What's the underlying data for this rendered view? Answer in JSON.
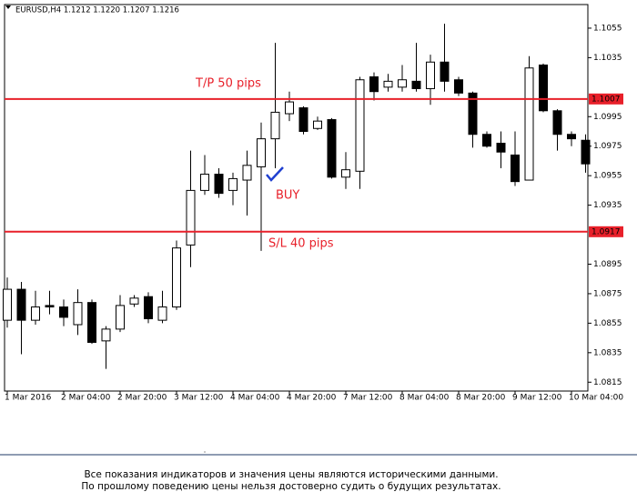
{
  "chart_data": {
    "type": "candlestick",
    "title": "EURUSD,H4  1.1212 1.1220 1.1207 1.1216",
    "categories": [
      "1 Mar 2016",
      null,
      null,
      null,
      "2 Mar 04:00",
      null,
      null,
      null,
      "2 Mar 20:00",
      null,
      null,
      null,
      "3 Mar 12:00",
      null,
      null,
      null,
      "4 Mar 04:00",
      null,
      null,
      null,
      "4 Mar 20:00",
      null,
      null,
      null,
      "7 Mar 12:00",
      null,
      null,
      null,
      "8 Mar 04:00",
      null,
      null,
      null,
      "8 Mar 20:00",
      null,
      null,
      null,
      "9 Mar 12:00",
      null,
      null,
      null,
      "10 Mar 04:00",
      null
    ],
    "open": [
      1.0857,
      1.0878,
      1.0857,
      1.0867,
      1.0866,
      1.0854,
      1.0869,
      1.0843,
      1.0851,
      1.0868,
      1.0873,
      1.0857,
      1.0866,
      1.0908,
      1.0945,
      1.0956,
      1.0945,
      1.0952,
      1.0961,
      1.098,
      1.0997,
      1.1001,
      1.0987,
      1.0993,
      1.0954,
      1.0958,
      1.1022,
      1.1015,
      1.1015,
      1.1019,
      1.1014,
      1.1032,
      1.102,
      1.1011,
      1.0983,
      1.0977,
      1.0969,
      1.0952,
      1.103,
      1.0999,
      1.0983,
      1.0979
    ],
    "high": [
      1.0886,
      1.0883,
      1.0877,
      1.0877,
      1.0871,
      1.0878,
      1.0871,
      1.0853,
      1.0874,
      1.0874,
      1.0876,
      1.0877,
      1.0911,
      1.0972,
      1.0969,
      1.096,
      1.0957,
      1.0972,
      1.0991,
      1.1045,
      1.1012,
      1.1002,
      1.0995,
      1.0994,
      1.0971,
      1.1022,
      1.1025,
      1.1024,
      1.103,
      1.1045,
      1.1037,
      1.1058,
      1.1022,
      1.1012,
      1.0985,
      1.0985,
      1.0985,
      1.1036,
      1.1031,
      1.1,
      1.0985,
      1.0983
    ],
    "low": [
      1.0852,
      1.0834,
      1.0854,
      1.0861,
      1.0853,
      1.0847,
      1.0841,
      1.0824,
      1.0849,
      1.0866,
      1.0855,
      1.0855,
      1.0864,
      1.0893,
      1.0942,
      1.094,
      1.0935,
      1.0928,
      1.0904,
      1.096,
      1.0992,
      1.0983,
      1.0986,
      1.0953,
      1.0946,
      1.0946,
      1.1006,
      1.1012,
      1.1012,
      1.1012,
      1.1003,
      1.1012,
      1.1009,
      1.0974,
      1.0974,
      1.096,
      1.0948,
      1.0952,
      1.0998,
      1.0972,
      1.0975,
      1.0957
    ],
    "close": [
      1.0878,
      1.0857,
      1.0866,
      1.0866,
      1.0859,
      1.0869,
      1.0842,
      1.0851,
      1.0867,
      1.0872,
      1.0858,
      1.0866,
      1.0906,
      1.0945,
      1.0956,
      1.0943,
      1.0953,
      1.0962,
      1.098,
      1.0998,
      1.1005,
      1.0985,
      1.0992,
      1.0954,
      1.0959,
      1.102,
      1.1012,
      1.1019,
      1.102,
      1.1014,
      1.1032,
      1.1019,
      1.1011,
      1.0983,
      1.0975,
      1.0971,
      1.0951,
      1.1028,
      1.0999,
      1.0983,
      1.098,
      1.0963
    ],
    "up_color": "#ffffff",
    "down_color": "#000000",
    "level_color": "#e8202a",
    "ylim": [
      1.0809,
      1.1071
    ],
    "yticks": [
      1.1055,
      1.1035,
      1.0995,
      1.0975,
      1.0955,
      1.0935,
      1.0895,
      1.0875,
      1.0855,
      1.0835,
      1.0815
    ],
    "levels": [
      {
        "value": 1.1007,
        "label": "T/P 50 pips"
      },
      {
        "value": 1.0917,
        "label": "S/L 40 pips"
      }
    ],
    "annotations": [
      "BUY"
    ]
  },
  "footer": {
    "lines": [
      "Все показания индикаторов и значения цены являются историческими данными.",
      "По прошлому поведению цены нельзя достоверно судить о будущих результатах."
    ]
  }
}
